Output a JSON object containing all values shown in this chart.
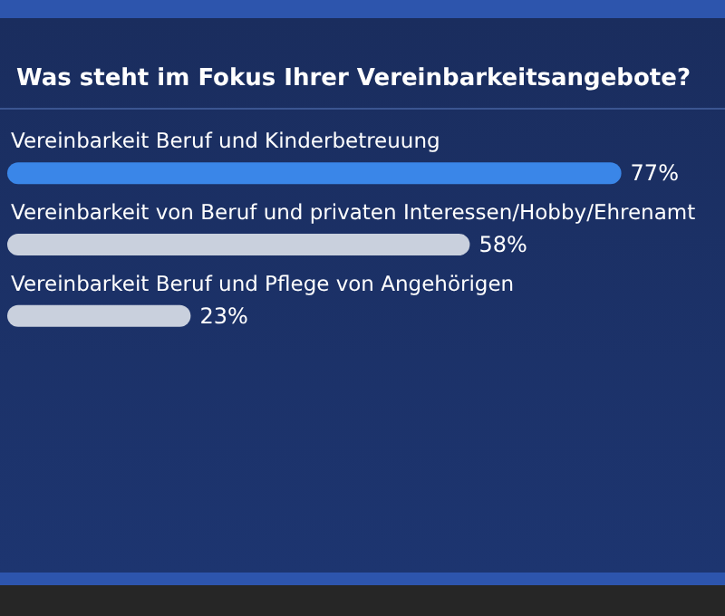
{
  "chart_data": {
    "type": "bar",
    "orientation": "horizontal",
    "title": "Was steht im Fokus Ihrer Vereinbarkeitsangebote?",
    "categories": [
      "Vereinbarkeit Beruf und Kinderbetreuung",
      "Vereinbarkeit von Beruf und privaten Interessen/Hobby/Ehrenamt",
      "Vereinbarkeit Beruf und Pflege von Angehörigen"
    ],
    "values": [
      77,
      58,
      23
    ],
    "colors": [
      "#3a86e8",
      "#c9d0dd",
      "#c9d0dd"
    ],
    "value_labels": [
      "77%",
      "58%",
      "23%"
    ],
    "tick_labels": false
  }
}
